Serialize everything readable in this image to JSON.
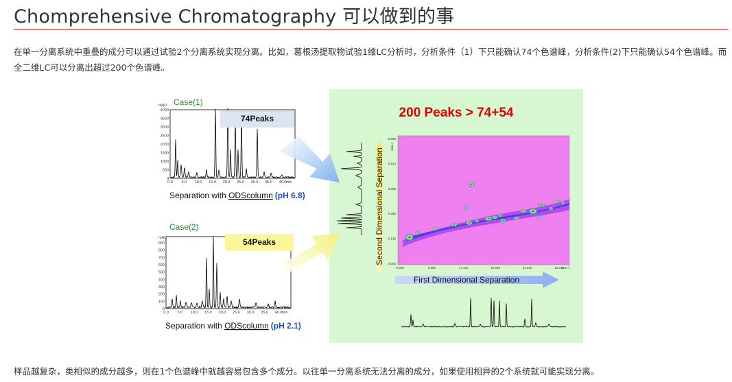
{
  "page": {
    "title": "Chomprehensive Chromatography 可以做到的事",
    "intro": "在单一分离系统中重叠的成分可以通过试验2个分离系统实现分离。比如，葛根汤提取物试验1维LC分析时，分析条件（1）下只能确认74个色谱峰，分析条件(2)下只能确认54个色谱峰。而全二维LC可以分离出超过200个色谱峰。",
    "footer": "样品越复杂，类相似的成分越多，则在1个色谱峰中就越容易包含多个成分。以往单一分离系统无法分离的成分，如果使用相异的2个系统就可能实现分离。"
  },
  "colors": {
    "title_rule": "#cc2222",
    "headline": "#e00000",
    "case_label": "#2a8a2a",
    "ph_text": "#1f4fc0",
    "panel_bg": "#d6f7d0",
    "heatmap_bg": "#f07ff0",
    "box1": "#dbe4f0",
    "box2": "#fdf79b"
  },
  "figure": {
    "headline": "200 Peaks > 74+54",
    "second_axis_label": "Second Dimensional Separation",
    "first_axis_label": "First Dimensional Separation",
    "case1": {
      "label": "Case(1)",
      "peaks_label": "74Peaks",
      "caption_prefix": "Separation with ",
      "caption_column": "ODScolumn",
      "caption_ph": "(pH 6.8)",
      "y_unit": "mAU",
      "y_ticks": [
        "4000",
        "3500",
        "3000",
        "2500",
        "2000",
        "1500",
        "1000",
        "500",
        "0"
      ],
      "x_ticks": [
        "0.0",
        "5.0",
        "10.0",
        "15.0",
        "20.0",
        "25.0",
        "30.0",
        "35.0",
        "40.0"
      ],
      "x_unit": "min"
    },
    "case2": {
      "label": "Case(2)",
      "peaks_label": "54Peaks",
      "caption_prefix": "Separation with ",
      "caption_column": "ODScolumn",
      "caption_ph": "(pH 2.1)",
      "y_unit": "mAU",
      "y_ticks": [
        "900",
        "800",
        "700",
        "600",
        "500",
        "400",
        "300",
        "200",
        "100",
        "0"
      ],
      "x_ticks": [
        "0.0",
        "5.0",
        "10.0",
        "15.0",
        "20.0",
        "25.0",
        "30.0",
        "35.0",
        "40.0"
      ],
      "x_unit": "min"
    },
    "heatmap": {
      "x_ticks": [
        "0.000",
        "8.655",
        "17.310",
        "25.965",
        "34.620",
        "43.275"
      ],
      "x_unit": "(min.)",
      "y_ticks": [
        "0.000",
        "0.133",
        "0.266",
        "0.399",
        "0.533",
        "0.666"
      ],
      "y_unit": "(min.)"
    }
  }
}
